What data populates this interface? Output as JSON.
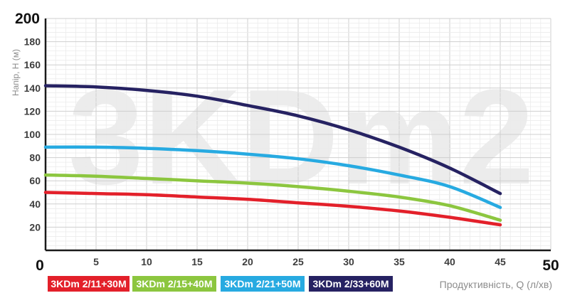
{
  "chart_data": {
    "type": "line",
    "watermark": "3KDm2",
    "xlabel": "Продуктивність, Q (л/хв)",
    "ylabel": "Напір, H (м)",
    "xlim": [
      0,
      50
    ],
    "ylim": [
      0,
      200
    ],
    "x_ticks": [
      "0",
      "5",
      "10",
      "15",
      "20",
      "25",
      "30",
      "35",
      "40",
      "45",
      "50"
    ],
    "y_ticks": [
      "20",
      "40",
      "60",
      "80",
      "100",
      "120",
      "140",
      "160",
      "180",
      "200"
    ],
    "grid": true,
    "legend_position": "bottom-left",
    "series": [
      {
        "name": "3KDm 2/11+30M",
        "color": "#e3202a",
        "x": [
          0,
          5,
          10,
          15,
          20,
          25,
          30,
          35,
          40,
          45
        ],
        "y": [
          50,
          49,
          48,
          46,
          44,
          41,
          38,
          34,
          28.5,
          22
        ]
      },
      {
        "name": "3KDm 2/15+40M",
        "color": "#8cc63f",
        "x": [
          0,
          5,
          10,
          15,
          20,
          25,
          30,
          35,
          40,
          45
        ],
        "y": [
          65,
          64,
          62,
          60,
          58,
          55,
          51,
          46,
          38.5,
          26
        ]
      },
      {
        "name": "3KDm 2/21+50M",
        "color": "#27aae1",
        "x": [
          0,
          5,
          10,
          15,
          20,
          25,
          30,
          35,
          40,
          45
        ],
        "y": [
          89,
          89,
          88,
          86,
          83,
          79,
          73,
          65,
          55,
          37
        ]
      },
      {
        "name": "3KDm 2/33+60M",
        "color": "#262262",
        "x": [
          0,
          5,
          10,
          15,
          20,
          25,
          30,
          35,
          40,
          45
        ],
        "y": [
          142,
          141,
          138,
          133,
          125,
          116,
          104,
          89,
          71,
          49
        ]
      }
    ]
  }
}
